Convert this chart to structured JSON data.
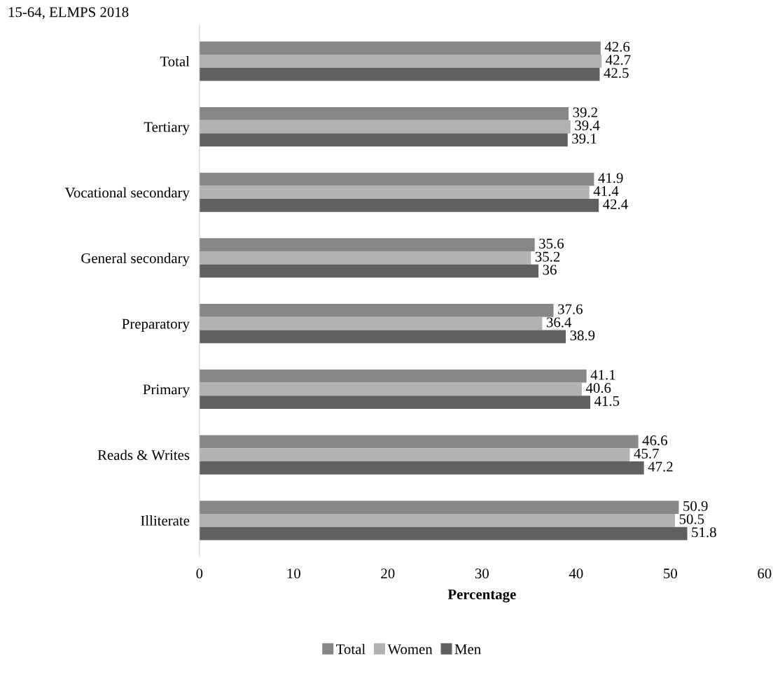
{
  "chart_data": {
    "type": "bar",
    "orientation": "horizontal",
    "title": "15-64, ELMPS 2018",
    "xlabel": "Percentage",
    "categories": [
      "Total",
      "Tertiary",
      "Vocational secondary",
      "General secondary",
      "Preparatory",
      "Primary",
      "Reads & Writes",
      "Illiterate"
    ],
    "series": [
      {
        "name": "Total",
        "color": "#878787",
        "values": [
          42.6,
          39.2,
          41.9,
          35.6,
          37.6,
          41.1,
          46.6,
          50.9
        ]
      },
      {
        "name": "Women",
        "color": "#b2b2b2",
        "values": [
          42.7,
          39.4,
          41.4,
          35.2,
          36.4,
          40.6,
          45.7,
          50.5
        ]
      },
      {
        "name": "Men",
        "color": "#606060",
        "values": [
          42.5,
          39.1,
          42.4,
          36,
          38.9,
          41.5,
          47.2,
          51.8
        ]
      }
    ],
    "xlim": [
      0,
      60
    ],
    "xticks": [
      0,
      10,
      20,
      30,
      40,
      50,
      60
    ],
    "grid": false,
    "legend": "bottom",
    "data_labels": true
  }
}
